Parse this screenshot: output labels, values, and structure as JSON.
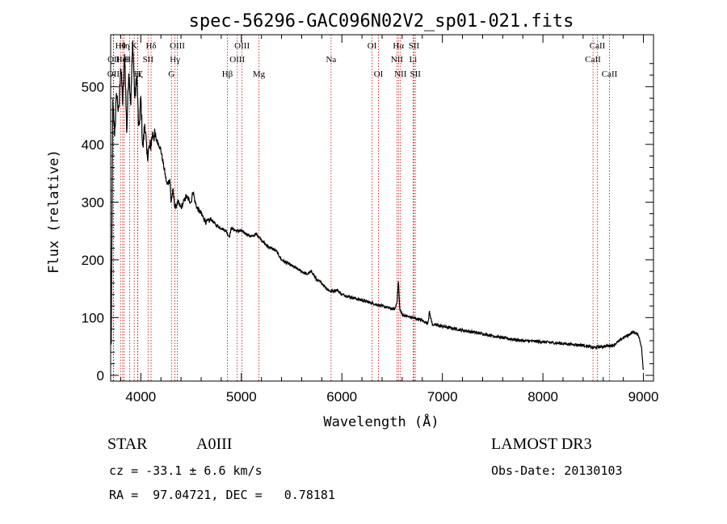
{
  "chart_data": {
    "type": "line",
    "title": "spec-56296-GAC096N02V2_sp01-021.fits",
    "xlabel": "Wavelength (Å)",
    "ylabel": "Flux (relative)",
    "xlim": [
      3700,
      9100
    ],
    "ylim": [
      -10,
      590
    ],
    "xticks": [
      4000,
      5000,
      6000,
      7000,
      8000,
      9000
    ],
    "yticks": [
      0,
      100,
      200,
      300,
      400,
      500
    ],
    "series": [
      {
        "name": "flux",
        "x": [
          3700,
          3705,
          3720,
          3740,
          3760,
          3780,
          3800,
          3820,
          3840,
          3860,
          3880,
          3900,
          3920,
          3940,
          3960,
          3980,
          4000,
          4020,
          4040,
          4060,
          4080,
          4100,
          4120,
          4150,
          4180,
          4200,
          4230,
          4260,
          4290,
          4300,
          4320,
          4340,
          4370,
          4400,
          4450,
          4500,
          4520,
          4540,
          4560,
          4600,
          4650,
          4700,
          4750,
          4800,
          4850,
          4880,
          4900,
          4950,
          5000,
          5050,
          5100,
          5150,
          5200,
          5250,
          5300,
          5350,
          5400,
          5450,
          5500,
          5550,
          5600,
          5650,
          5700,
          5750,
          5800,
          5850,
          5890,
          5950,
          6000,
          6100,
          6200,
          6300,
          6400,
          6500,
          6530,
          6550,
          6563,
          6575,
          6600,
          6650,
          6700,
          6800,
          6850,
          6860,
          6870,
          6900,
          7000,
          7200,
          7400,
          7600,
          7800,
          8000,
          8200,
          8400,
          8500,
          8600,
          8700,
          8800,
          8850,
          8900,
          8950,
          8980,
          9000
        ],
        "values": [
          180,
          20,
          470,
          420,
          490,
          450,
          540,
          470,
          560,
          420,
          530,
          470,
          580,
          480,
          520,
          420,
          480,
          390,
          440,
          380,
          390,
          400,
          420,
          410,
          400,
          390,
          360,
          330,
          340,
          300,
          320,
          290,
          300,
          290,
          310,
          300,
          320,
          300,
          290,
          280,
          265,
          270,
          260,
          255,
          250,
          240,
          255,
          250,
          250,
          245,
          240,
          245,
          235,
          225,
          220,
          215,
          200,
          195,
          190,
          185,
          180,
          175,
          180,
          165,
          160,
          150,
          145,
          148,
          140,
          135,
          130,
          125,
          120,
          115,
          115,
          130,
          165,
          115,
          105,
          102,
          100,
          95,
          90,
          95,
          110,
          88,
          85,
          78,
          72,
          65,
          60,
          58,
          55,
          52,
          48,
          50,
          52,
          65,
          70,
          75,
          70,
          50,
          5
        ]
      }
    ],
    "spectral_lines": [
      {
        "label": "OII",
        "x": 3727,
        "row": 2
      },
      {
        "label": "OII",
        "x": 3730,
        "row": 1
      },
      {
        "label": "Hθ",
        "x": 3798,
        "row": 0
      },
      {
        "label": "Hη",
        "x": 3835,
        "row": 0
      },
      {
        "label": "Hε",
        "x": 3889,
        "row": 1
      },
      {
        "label": "Hζ",
        "x": 3970,
        "row": 2
      },
      {
        "label": "K",
        "x": 3934,
        "row": 0
      },
      {
        "label": "H",
        "x": 3968,
        "row": 2
      },
      {
        "label": "HeI",
        "x": 3820,
        "row": 1
      },
      {
        "label": "Hδ",
        "x": 4102,
        "row": 0
      },
      {
        "label": "SII",
        "x": 4072,
        "row": 1
      },
      {
        "label": "Hγ",
        "x": 4340,
        "row": 1
      },
      {
        "label": "G",
        "x": 4305,
        "row": 2
      },
      {
        "label": "OIII",
        "x": 4363,
        "row": 0
      },
      {
        "label": "Hβ",
        "x": 4861,
        "row": 2
      },
      {
        "label": "OIII",
        "x": 4959,
        "row": 1
      },
      {
        "label": "OIII",
        "x": 5007,
        "row": 0
      },
      {
        "label": "Mg",
        "x": 5175,
        "row": 2
      },
      {
        "label": "Na",
        "x": 5893,
        "row": 1
      },
      {
        "label": "OI",
        "x": 6300,
        "row": 0
      },
      {
        "label": "OI",
        "x": 6364,
        "row": 2
      },
      {
        "label": "NII",
        "x": 6548,
        "row": 1
      },
      {
        "label": "Hα",
        "x": 6563,
        "row": 0
      },
      {
        "label": "NII",
        "x": 6583,
        "row": 2
      },
      {
        "label": "Li",
        "x": 6708,
        "row": 1
      },
      {
        "label": "SII",
        "x": 6717,
        "row": 0
      },
      {
        "label": "SII",
        "x": 6731,
        "row": 2
      },
      {
        "label": "CaII",
        "x": 8498,
        "row": 1
      },
      {
        "label": "CaII",
        "x": 8542,
        "row": 0
      },
      {
        "label": "CaII",
        "x": 8662,
        "row": 2
      }
    ],
    "colors": {
      "spectrum": "#000000",
      "lines": "#cc0000",
      "axes": "#000000"
    }
  },
  "info": {
    "object_class": "STAR",
    "subclass": "A0III",
    "survey": "LAMOST DR3",
    "redshift": "cz = -33.1 ± 6.6 km/s",
    "obs_date": "Obs-Date: 20130103",
    "coords": "RA =  97.04721, DEC =   0.78181"
  }
}
